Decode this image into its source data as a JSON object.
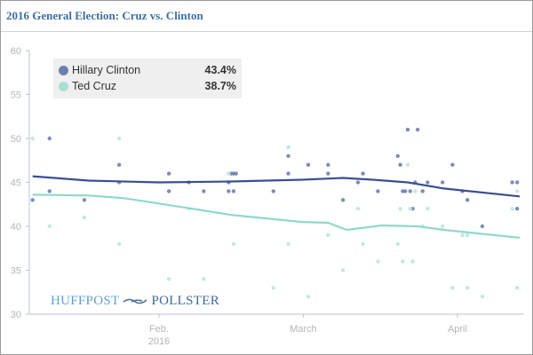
{
  "title": "2016 General Election: Cruz vs. Clinton",
  "logo": {
    "left": "HUFFPOST",
    "right": "POLLSTER"
  },
  "chart_data": {
    "type": "line",
    "title": "2016 General Election: Cruz vs. Clinton",
    "xlabel": "",
    "ylabel": "",
    "x_unit": "day of year 2016 (1 = Jan 1)",
    "xlim": [
      4.4,
      104.4
    ],
    "ylim": [
      30,
      60
    ],
    "yticks": [
      30,
      35,
      40,
      45,
      50,
      55,
      60
    ],
    "xticks": [
      {
        "day": 31,
        "label": "Feb.",
        "sublabel": "2016"
      },
      {
        "day": 60,
        "label": "March",
        "sublabel": ""
      },
      {
        "day": 91,
        "label": "April",
        "sublabel": ""
      }
    ],
    "grid": false,
    "legend_position": "top-left",
    "series": [
      {
        "name": "Hillary Clinton",
        "latest": "43.4%",
        "color": "#3a4e93",
        "dot_color": "#6e7fb3",
        "trend": [
          [
            5.6,
            45.7
          ],
          [
            16.9,
            45.2
          ],
          [
            31,
            45.0
          ],
          [
            45.5,
            45.1
          ],
          [
            59.8,
            45.3
          ],
          [
            68,
            45.5
          ],
          [
            74,
            45.3
          ],
          [
            81,
            45.0
          ],
          [
            88.3,
            44.3
          ],
          [
            103.5,
            43.4
          ]
        ],
        "polls": [
          [
            5.6,
            43
          ],
          [
            9,
            50
          ],
          [
            9,
            44
          ],
          [
            16,
            43
          ],
          [
            23,
            47
          ],
          [
            23,
            45
          ],
          [
            33,
            46
          ],
          [
            33,
            44
          ],
          [
            37,
            45
          ],
          [
            40,
            44
          ],
          [
            45,
            45
          ],
          [
            45,
            44
          ],
          [
            45.5,
            46
          ],
          [
            46,
            46
          ],
          [
            46.5,
            46
          ],
          [
            46,
            44
          ],
          [
            54,
            44
          ],
          [
            57,
            48
          ],
          [
            57,
            46
          ],
          [
            61,
            47
          ],
          [
            65,
            47
          ],
          [
            65,
            46
          ],
          [
            68,
            43
          ],
          [
            71,
            45
          ],
          [
            72,
            46
          ],
          [
            75,
            44
          ],
          [
            79,
            48
          ],
          [
            79.5,
            47
          ],
          [
            80,
            44
          ],
          [
            80.5,
            44
          ],
          [
            81,
            51
          ],
          [
            81.5,
            44
          ],
          [
            82,
            42
          ],
          [
            82.5,
            45
          ],
          [
            83,
            51
          ],
          [
            84,
            44
          ],
          [
            85,
            45
          ],
          [
            88,
            45
          ],
          [
            90,
            47
          ],
          [
            92,
            44
          ],
          [
            93,
            43
          ],
          [
            96,
            40
          ],
          [
            102,
            45
          ],
          [
            103,
            45
          ],
          [
            103,
            42
          ]
        ]
      },
      {
        "name": "Ted Cruz",
        "latest": "38.7%",
        "color": "#8fd9c8",
        "dot_color": "#b8e8dd",
        "trend": [
          [
            5.6,
            43.6
          ],
          [
            16.9,
            43.5
          ],
          [
            24,
            43.2
          ],
          [
            31,
            42.6
          ],
          [
            45.5,
            41.3
          ],
          [
            59.8,
            40.5
          ],
          [
            65,
            40.4
          ],
          [
            68.7,
            39.6
          ],
          [
            75.8,
            40.1
          ],
          [
            83,
            40.0
          ],
          [
            88.3,
            39.6
          ],
          [
            103.5,
            38.7
          ]
        ],
        "polls": [
          [
            5.6,
            50
          ],
          [
            9,
            40
          ],
          [
            16,
            41
          ],
          [
            23,
            50
          ],
          [
            23,
            38
          ],
          [
            33,
            34
          ],
          [
            37,
            42
          ],
          [
            40,
            34
          ],
          [
            45,
            46
          ],
          [
            46,
            38
          ],
          [
            54,
            33
          ],
          [
            57,
            49
          ],
          [
            57,
            38
          ],
          [
            61,
            32
          ],
          [
            65,
            39
          ],
          [
            68,
            35
          ],
          [
            71,
            42
          ],
          [
            72,
            38
          ],
          [
            75,
            36
          ],
          [
            79,
            38
          ],
          [
            79.5,
            42
          ],
          [
            80,
            36
          ],
          [
            81,
            47
          ],
          [
            81.5,
            42
          ],
          [
            82,
            36
          ],
          [
            82.5,
            44
          ],
          [
            84,
            40
          ],
          [
            85,
            42
          ],
          [
            88,
            40
          ],
          [
            90,
            33
          ],
          [
            92,
            39
          ],
          [
            93,
            33
          ],
          [
            93,
            39
          ],
          [
            96,
            32
          ],
          [
            102,
            42
          ],
          [
            103,
            44
          ],
          [
            103,
            33
          ]
        ]
      }
    ]
  }
}
